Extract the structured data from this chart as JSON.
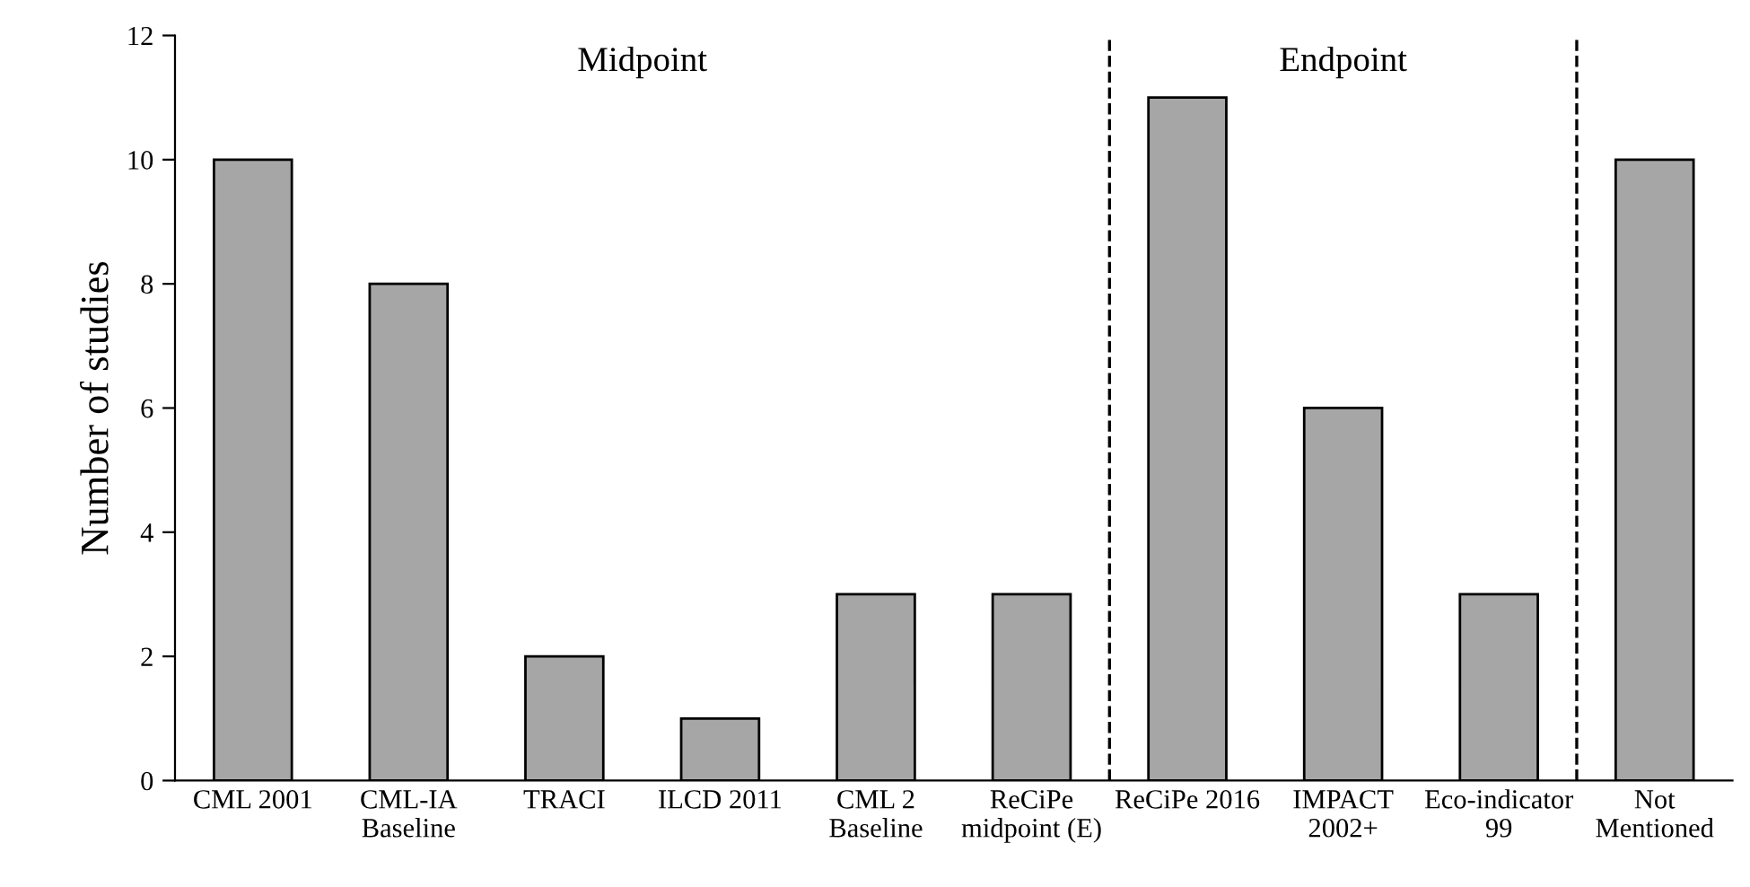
{
  "chart_data": {
    "type": "bar",
    "ylabel": "Number of studies",
    "categories": [
      "CML 2001",
      "CML-IA\nBaseline",
      "TRACI",
      "ILCD 2011",
      "CML 2\nBaseline",
      "ReCiPe\nmidpoint (E)",
      "ReCiPe 2016",
      "IMPACT\n2002+",
      "Eco-indicator\n99",
      "Not\nMentioned"
    ],
    "values": [
      10,
      8,
      2,
      1,
      3,
      3,
      11,
      6,
      3,
      10
    ],
    "color": "#a6a6a6",
    "ylim": [
      0,
      12
    ],
    "yticks": [
      0,
      2,
      4,
      6,
      8,
      10,
      12
    ],
    "grid": false,
    "annotations": [
      "Midpoint",
      "Endpoint"
    ]
  }
}
